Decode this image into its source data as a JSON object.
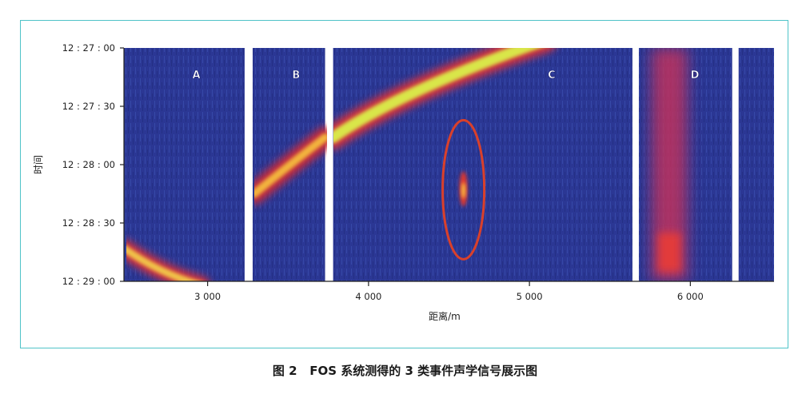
{
  "caption": {
    "label": "图 2",
    "text": "FOS 系统测得的 3 类事件声学信号展示图"
  },
  "colors": {
    "frame": "#4fc3c8",
    "background_signal": "#2a3590",
    "highlight_ellipse": "#d9402b"
  },
  "chart_data": {
    "type": "heatmap",
    "xlabel": "距离/m",
    "ylabel": "时间",
    "x_ticks": [
      {
        "value": 3000,
        "label": "3 000"
      },
      {
        "value": 4000,
        "label": "4 000"
      },
      {
        "value": 5000,
        "label": "5 000"
      },
      {
        "value": 6000,
        "label": "6 000"
      }
    ],
    "y_ticks": [
      {
        "value": "12:27:00",
        "label": "12 : 27 : 00"
      },
      {
        "value": "12:27:30",
        "label": "12 : 27 : 30"
      },
      {
        "value": "12:28:00",
        "label": "12 : 28 : 00"
      },
      {
        "value": "12:28:30",
        "label": "12 : 28 : 30"
      },
      {
        "value": "12:29:00",
        "label": "12 : 29 : 00"
      }
    ],
    "xlim": [
      2480,
      6520
    ],
    "ylim_seconds_after_12_27_00": [
      0,
      120
    ],
    "y_axis_inverted": true,
    "regions": [
      {
        "label": "A",
        "x_range": [
          2480,
          3230
        ]
      },
      {
        "label": "B",
        "x_range": [
          3280,
          3730
        ]
      },
      {
        "label": "C",
        "x_range": [
          3780,
          5640
        ]
      },
      {
        "label": "D",
        "x_range": [
          5680,
          6260
        ]
      },
      {
        "label": "",
        "x_range": [
          6300,
          6520
        ]
      }
    ],
    "highlight": {
      "shape": "ellipse",
      "x_center": 4590,
      "t_center": "12:28:10"
    }
  }
}
